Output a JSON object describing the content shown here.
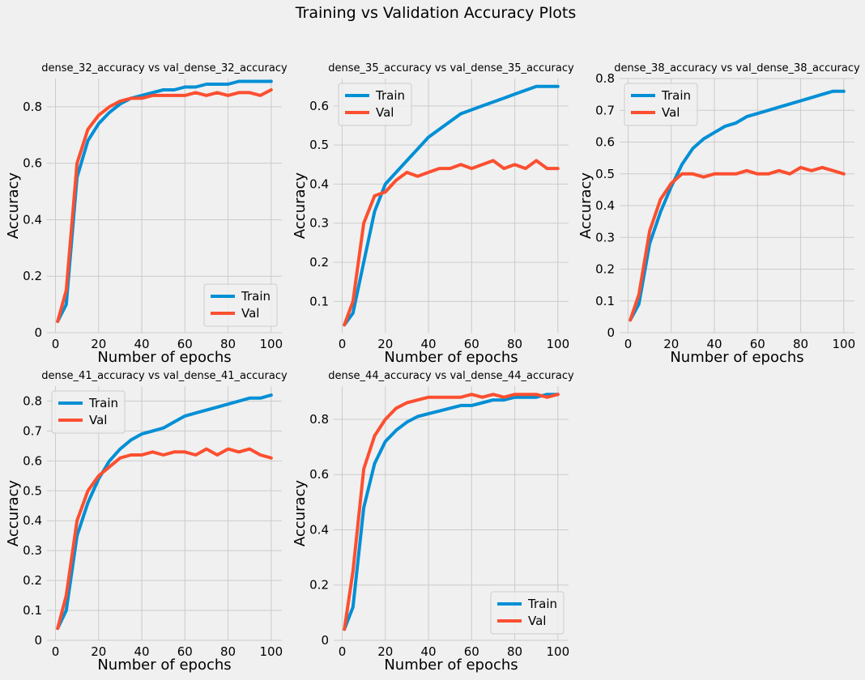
{
  "figure": {
    "title": "Training vs Validation Accuracy Plots"
  },
  "chart_data": [
    {
      "type": "line",
      "title": "dense_32_accuracy vs val_dense_32_accuracy",
      "xlabel": "Number of epochs",
      "ylabel": "Accuracy",
      "xlim": [
        1,
        100
      ],
      "ylim": [
        0.0,
        0.9
      ],
      "xticks": [
        0,
        20,
        40,
        60,
        80,
        100
      ],
      "yticks": [
        0.0,
        0.2,
        0.4,
        0.6,
        0.8
      ],
      "grid": true,
      "legend_position": "lower-right",
      "x_epochs": [
        1,
        5,
        10,
        15,
        20,
        25,
        30,
        35,
        40,
        45,
        50,
        55,
        60,
        65,
        70,
        75,
        80,
        85,
        90,
        95,
        100
      ],
      "series": [
        {
          "name": "Train",
          "color": "#008fd5",
          "values": [
            0.04,
            0.1,
            0.55,
            0.68,
            0.74,
            0.78,
            0.81,
            0.83,
            0.84,
            0.85,
            0.86,
            0.86,
            0.87,
            0.87,
            0.88,
            0.88,
            0.88,
            0.89,
            0.89,
            0.89,
            0.89
          ]
        },
        {
          "name": "Val",
          "color": "#fc4f30",
          "values": [
            0.04,
            0.15,
            0.6,
            0.72,
            0.77,
            0.8,
            0.82,
            0.83,
            0.83,
            0.84,
            0.84,
            0.84,
            0.84,
            0.85,
            0.84,
            0.85,
            0.84,
            0.85,
            0.85,
            0.84,
            0.86
          ]
        }
      ]
    },
    {
      "type": "line",
      "title": "dense_35_accuracy vs val_dense_35_accuracy",
      "xlabel": "Number of epochs",
      "ylabel": "Accuracy",
      "xlim": [
        1,
        100
      ],
      "ylim": [
        0.02,
        0.67
      ],
      "xticks": [
        0,
        20,
        40,
        60,
        80,
        100
      ],
      "yticks": [
        0.1,
        0.2,
        0.3,
        0.4,
        0.5,
        0.6
      ],
      "grid": true,
      "legend_position": "upper-left",
      "x_epochs": [
        1,
        5,
        10,
        15,
        20,
        25,
        30,
        35,
        40,
        45,
        50,
        55,
        60,
        65,
        70,
        75,
        80,
        85,
        90,
        95,
        100
      ],
      "series": [
        {
          "name": "Train",
          "color": "#008fd5",
          "values": [
            0.04,
            0.07,
            0.2,
            0.33,
            0.4,
            0.43,
            0.46,
            0.49,
            0.52,
            0.54,
            0.56,
            0.58,
            0.59,
            0.6,
            0.61,
            0.62,
            0.63,
            0.64,
            0.65,
            0.65,
            0.65
          ]
        },
        {
          "name": "Val",
          "color": "#fc4f30",
          "values": [
            0.04,
            0.1,
            0.3,
            0.37,
            0.38,
            0.41,
            0.43,
            0.42,
            0.43,
            0.44,
            0.44,
            0.45,
            0.44,
            0.45,
            0.46,
            0.44,
            0.45,
            0.44,
            0.46,
            0.44,
            0.44
          ]
        }
      ]
    },
    {
      "type": "line",
      "title": "dense_38_accuracy vs val_dense_38_accuracy",
      "xlabel": "Number of epochs",
      "ylabel": "Accuracy",
      "xlim": [
        1,
        100
      ],
      "ylim": [
        0.0,
        0.8
      ],
      "xticks": [
        0,
        20,
        40,
        60,
        80,
        100
      ],
      "yticks": [
        0.0,
        0.1,
        0.2,
        0.3,
        0.4,
        0.5,
        0.6,
        0.7,
        0.8
      ],
      "grid": true,
      "legend_position": "upper-left",
      "x_epochs": [
        1,
        5,
        10,
        15,
        20,
        25,
        30,
        35,
        40,
        45,
        50,
        55,
        60,
        65,
        70,
        75,
        80,
        85,
        90,
        95,
        100
      ],
      "series": [
        {
          "name": "Train",
          "color": "#008fd5",
          "values": [
            0.04,
            0.09,
            0.28,
            0.38,
            0.46,
            0.53,
            0.58,
            0.61,
            0.63,
            0.65,
            0.66,
            0.68,
            0.69,
            0.7,
            0.71,
            0.72,
            0.73,
            0.74,
            0.75,
            0.76,
            0.76
          ]
        },
        {
          "name": "Val",
          "color": "#fc4f30",
          "values": [
            0.04,
            0.12,
            0.32,
            0.42,
            0.47,
            0.5,
            0.5,
            0.49,
            0.5,
            0.5,
            0.5,
            0.51,
            0.5,
            0.5,
            0.51,
            0.5,
            0.52,
            0.51,
            0.52,
            0.51,
            0.5
          ]
        }
      ]
    },
    {
      "type": "line",
      "title": "dense_41_accuracy vs val_dense_41_accuracy",
      "xlabel": "Number of epochs",
      "ylabel": "Accuracy",
      "xlim": [
        1,
        100
      ],
      "ylim": [
        0.0,
        0.85
      ],
      "xticks": [
        0,
        20,
        40,
        60,
        80,
        100
      ],
      "yticks": [
        0.0,
        0.1,
        0.2,
        0.3,
        0.4,
        0.5,
        0.6,
        0.7,
        0.8
      ],
      "grid": true,
      "legend_position": "upper-left",
      "x_epochs": [
        1,
        5,
        10,
        15,
        20,
        25,
        30,
        35,
        40,
        45,
        50,
        55,
        60,
        65,
        70,
        75,
        80,
        85,
        90,
        95,
        100
      ],
      "series": [
        {
          "name": "Train",
          "color": "#008fd5",
          "values": [
            0.04,
            0.1,
            0.35,
            0.46,
            0.54,
            0.6,
            0.64,
            0.67,
            0.69,
            0.7,
            0.71,
            0.73,
            0.75,
            0.76,
            0.77,
            0.78,
            0.79,
            0.8,
            0.81,
            0.81,
            0.82
          ]
        },
        {
          "name": "Val",
          "color": "#fc4f30",
          "values": [
            0.04,
            0.15,
            0.4,
            0.5,
            0.55,
            0.58,
            0.61,
            0.62,
            0.62,
            0.63,
            0.62,
            0.63,
            0.63,
            0.62,
            0.64,
            0.62,
            0.64,
            0.63,
            0.64,
            0.62,
            0.61
          ]
        }
      ]
    },
    {
      "type": "line",
      "title": "dense_44_accuracy vs val_dense_44_accuracy",
      "xlabel": "Number of epochs",
      "ylabel": "Accuracy",
      "xlim": [
        1,
        100
      ],
      "ylim": [
        0.0,
        0.92
      ],
      "xticks": [
        0,
        20,
        40,
        60,
        80,
        100
      ],
      "yticks": [
        0.0,
        0.2,
        0.4,
        0.6,
        0.8
      ],
      "grid": true,
      "legend_position": "lower-right",
      "x_epochs": [
        1,
        5,
        10,
        15,
        20,
        25,
        30,
        35,
        40,
        45,
        50,
        55,
        60,
        65,
        70,
        75,
        80,
        85,
        90,
        95,
        100
      ],
      "series": [
        {
          "name": "Train",
          "color": "#008fd5",
          "values": [
            0.04,
            0.12,
            0.48,
            0.64,
            0.72,
            0.76,
            0.79,
            0.81,
            0.82,
            0.83,
            0.84,
            0.85,
            0.85,
            0.86,
            0.87,
            0.87,
            0.88,
            0.88,
            0.88,
            0.89,
            0.89
          ]
        },
        {
          "name": "Val",
          "color": "#fc4f30",
          "values": [
            0.04,
            0.25,
            0.62,
            0.74,
            0.8,
            0.84,
            0.86,
            0.87,
            0.88,
            0.88,
            0.88,
            0.88,
            0.89,
            0.88,
            0.89,
            0.88,
            0.89,
            0.89,
            0.89,
            0.88,
            0.89
          ]
        }
      ]
    }
  ]
}
